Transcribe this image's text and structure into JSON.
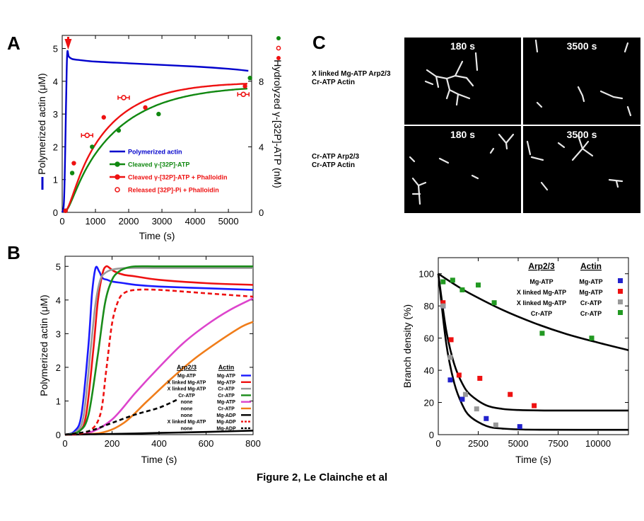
{
  "caption": "Figure 2, Le Clainche et al",
  "panels": {
    "a": "A",
    "b": "B",
    "c": "C"
  },
  "panel_c": {
    "row_labels": [
      [
        "X linked Mg-ATP Arp2/3",
        "Cr-ATP Actin"
      ],
      [
        "Cr-ATP Arp2/3",
        "Cr-ATP Actin"
      ]
    ],
    "times": [
      "180 s",
      "3500 s",
      "180 s",
      "3500 s"
    ]
  },
  "chart_data": [
    {
      "id": "A",
      "type": "line",
      "xlabel": "Time (s)",
      "ylabel": "Polymerized actin (μM)",
      "y2label": "Hydrolyzed γ-[32P]-ATP (nM)",
      "xlim": [
        0,
        5700
      ],
      "ylim": [
        0,
        5.4
      ],
      "y2lim": [
        0,
        10.8
      ],
      "xticks": [
        0,
        1000,
        2000,
        3000,
        4000,
        5000
      ],
      "yticks": [
        0,
        1,
        2,
        3,
        4,
        5
      ],
      "y2ticks": [
        0,
        4,
        8
      ],
      "colors": {
        "blue": "#0000cc",
        "green": "#118811",
        "red": "#ee1111"
      },
      "series": [
        {
          "name": "Polymerized actin",
          "axis": "left",
          "color": "#0000cc",
          "x": [
            0,
            60,
            120,
            150,
            200,
            300,
            500,
            1000,
            2000,
            3000,
            4000,
            5000,
            5600
          ],
          "y": [
            0,
            0.5,
            3.5,
            4.85,
            4.75,
            4.68,
            4.65,
            4.6,
            4.55,
            4.5,
            4.45,
            4.38,
            4.32
          ]
        },
        {
          "name": "Cleaved γ-[32P]-ATP",
          "axis": "right",
          "color": "#118811",
          "x": [
            100,
            300,
            900,
            1700,
            2900,
            5650
          ],
          "y": [
            0.1,
            2.4,
            4.0,
            5.0,
            6.0,
            8.2
          ]
        },
        {
          "name": "Cleaved γ-[32P]-ATP + Phalloidin",
          "axis": "right",
          "color": "#ee1111",
          "x": [
            100,
            350,
            1250,
            2500,
            5500
          ],
          "y": [
            0.1,
            3.0,
            5.8,
            6.4,
            7.7
          ]
        },
        {
          "name": "Released [32P]-Pi + Phalloidin",
          "axis": "right",
          "color": "#ee1111",
          "marker": "open",
          "x": [
            750,
            1850,
            5450
          ],
          "y": [
            4.7,
            7.0,
            7.2
          ]
        }
      ],
      "legend": {
        "position": "lower-right",
        "items": [
          "Polymerized actin",
          "Cleaved γ-[32P]-ATP",
          "Cleaved γ-[32P]-ATP + Phalloidin",
          "Released [32P]-Pi + Phalloidin"
        ]
      }
    },
    {
      "id": "B",
      "type": "line",
      "xlabel": "Time (s)",
      "ylabel": "Polymerized actin (μM)",
      "xlim": [
        0,
        800
      ],
      "ylim": [
        0,
        5.3
      ],
      "xticks": [
        0,
        200,
        400,
        600,
        800
      ],
      "yticks": [
        0,
        1,
        2,
        3,
        4,
        5
      ],
      "legend_headers": [
        "Arp2/3",
        "Actin"
      ],
      "series": [
        {
          "arp": "Mg-ATP",
          "actin": "Mg-ATP",
          "color": "#1a1aff",
          "x": [
            0,
            40,
            70,
            100,
            115,
            130,
            145,
            160,
            180,
            200,
            250,
            300,
            400,
            600,
            800
          ],
          "y": [
            0,
            0.1,
            0.6,
            2.7,
            4.2,
            4.95,
            4.85,
            4.65,
            4.6,
            4.55,
            4.5,
            4.45,
            4.4,
            4.35,
            4.3
          ]
        },
        {
          "arp": "X linked Mg-ATP",
          "actin": "Mg-ATP",
          "color": "#ee1111",
          "x": [
            0,
            60,
            90,
            120,
            140,
            160,
            175,
            190,
            210,
            250,
            300,
            400,
            600,
            800
          ],
          "y": [
            0,
            0.1,
            0.6,
            2.5,
            4.0,
            4.8,
            5.0,
            4.95,
            4.85,
            4.75,
            4.7,
            4.6,
            4.5,
            4.45
          ]
        },
        {
          "arp": "X linked Mg-ATP",
          "actin": "Cr-ATP",
          "color": "#999999",
          "x": [
            0,
            50,
            80,
            110,
            130,
            150,
            170,
            200,
            260,
            400,
            600,
            800
          ],
          "y": [
            0,
            0.1,
            0.6,
            2.6,
            3.9,
            4.6,
            4.8,
            4.9,
            4.95,
            4.95,
            4.95,
            4.95
          ]
        },
        {
          "arp": "Cr-ATP",
          "actin": "Cr-ATP",
          "color": "#1a8c1a",
          "x": [
            0,
            60,
            100,
            140,
            170,
            200,
            230,
            260,
            300,
            400,
            600,
            800
          ],
          "y": [
            0,
            0.1,
            0.6,
            2.4,
            3.9,
            4.6,
            4.85,
            4.95,
            5.0,
            5.0,
            5.0,
            5.0
          ]
        },
        {
          "arp": "none",
          "actin": "Mg-ATP",
          "color": "#dd44cc",
          "x": [
            0,
            100,
            200,
            300,
            400,
            500,
            600,
            700,
            800
          ],
          "y": [
            0,
            0.05,
            0.45,
            1.25,
            2.0,
            2.7,
            3.25,
            3.7,
            4.05
          ]
        },
        {
          "arp": "none",
          "actin": "Cr-ATP",
          "color": "#f07d1a",
          "x": [
            0,
            150,
            250,
            350,
            450,
            550,
            650,
            750,
            800
          ],
          "y": [
            0,
            0.05,
            0.35,
            1.0,
            1.65,
            2.25,
            2.75,
            3.2,
            3.35
          ]
        },
        {
          "arp": "none",
          "actin": "Mg-ADP",
          "color": "#000000",
          "x": [
            0,
            200,
            400,
            600,
            800
          ],
          "y": [
            0,
            0.02,
            0.05,
            0.08,
            0.12
          ]
        },
        {
          "arp": "X linked Mg-ATP",
          "actin": "Mg-ADP",
          "color": "#ee1111",
          "dashed": true,
          "x": [
            0,
            100,
            150,
            175,
            200,
            225,
            250,
            300,
            400,
            600,
            800
          ],
          "y": [
            0,
            0.1,
            0.6,
            1.9,
            3.3,
            3.95,
            4.2,
            4.3,
            4.3,
            4.2,
            4.1
          ]
        },
        {
          "arp": "none",
          "actin": "Mg-ADP",
          "color": "#000000",
          "dashed": true,
          "x": [
            0,
            100,
            200,
            300,
            400,
            480
          ],
          "y": [
            0,
            0.1,
            0.35,
            0.6,
            0.8,
            1.05
          ]
        }
      ],
      "legend": {
        "position": "lower-right"
      }
    },
    {
      "id": "D",
      "type": "scatter",
      "xlabel": "Time (s)",
      "ylabel": "Branch density (%)",
      "xlim": [
        0,
        11900
      ],
      "ylim": [
        0,
        110
      ],
      "xticks": [
        0,
        2500,
        5000,
        7500,
        10000
      ],
      "yticks": [
        0,
        20,
        40,
        60,
        80,
        100
      ],
      "legend_headers": [
        "Arp2/3",
        "Actin"
      ],
      "series": [
        {
          "arp": "Mg-ATP",
          "actin": "Mg-ATP",
          "color": "#2222cc",
          "x": [
            300,
            750,
            1500,
            3000,
            5100
          ],
          "y": [
            80,
            34,
            22,
            10,
            5
          ]
        },
        {
          "arp": "X linked Mg-ATP",
          "actin": "Mg-ATP",
          "color": "#ee1111",
          "x": [
            300,
            800,
            1300,
            2600,
            4500,
            6000
          ],
          "y": [
            82,
            59,
            37,
            35,
            25,
            18
          ]
        },
        {
          "arp": "X linked Mg-ATP",
          "actin": "Cr-ATP",
          "color": "#999999",
          "x": [
            300,
            750,
            1700,
            2400,
            3600
          ],
          "y": [
            80,
            48,
            25,
            16,
            6
          ]
        },
        {
          "arp": "Cr-ATP",
          "actin": "Cr-ATP",
          "color": "#229922",
          "x": [
            300,
            900,
            1500,
            2500,
            3500,
            6500,
            9600
          ],
          "y": [
            95,
            96,
            90,
            93,
            82,
            63,
            60
          ]
        }
      ],
      "fits": [
        {
          "x": [
            0,
            1000,
            2000,
            4000,
            6000,
            8000,
            10000,
            11900
          ],
          "y": [
            100,
            93.5,
            87.6,
            77.6,
            69.4,
            62.6,
            57.2,
            52.5
          ]
        },
        {
          "x": [
            0,
            500,
            1000,
            1500,
            2000,
            3000,
            4000,
            5000,
            7000,
            11900
          ],
          "y": [
            100,
            64.6,
            43.8,
            31.8,
            24.8,
            18.2,
            16.0,
            15.3,
            15.0,
            15.0
          ]
        },
        {
          "x": [
            0,
            500,
            1000,
            1500,
            2000,
            3000,
            4000,
            6000,
            11900
          ],
          "y": [
            100,
            56.5,
            32.0,
            18.6,
            11.2,
            5.4,
            3.8,
            3.1,
            3.0
          ]
        }
      ],
      "legend": {
        "position": "top-right"
      }
    }
  ]
}
